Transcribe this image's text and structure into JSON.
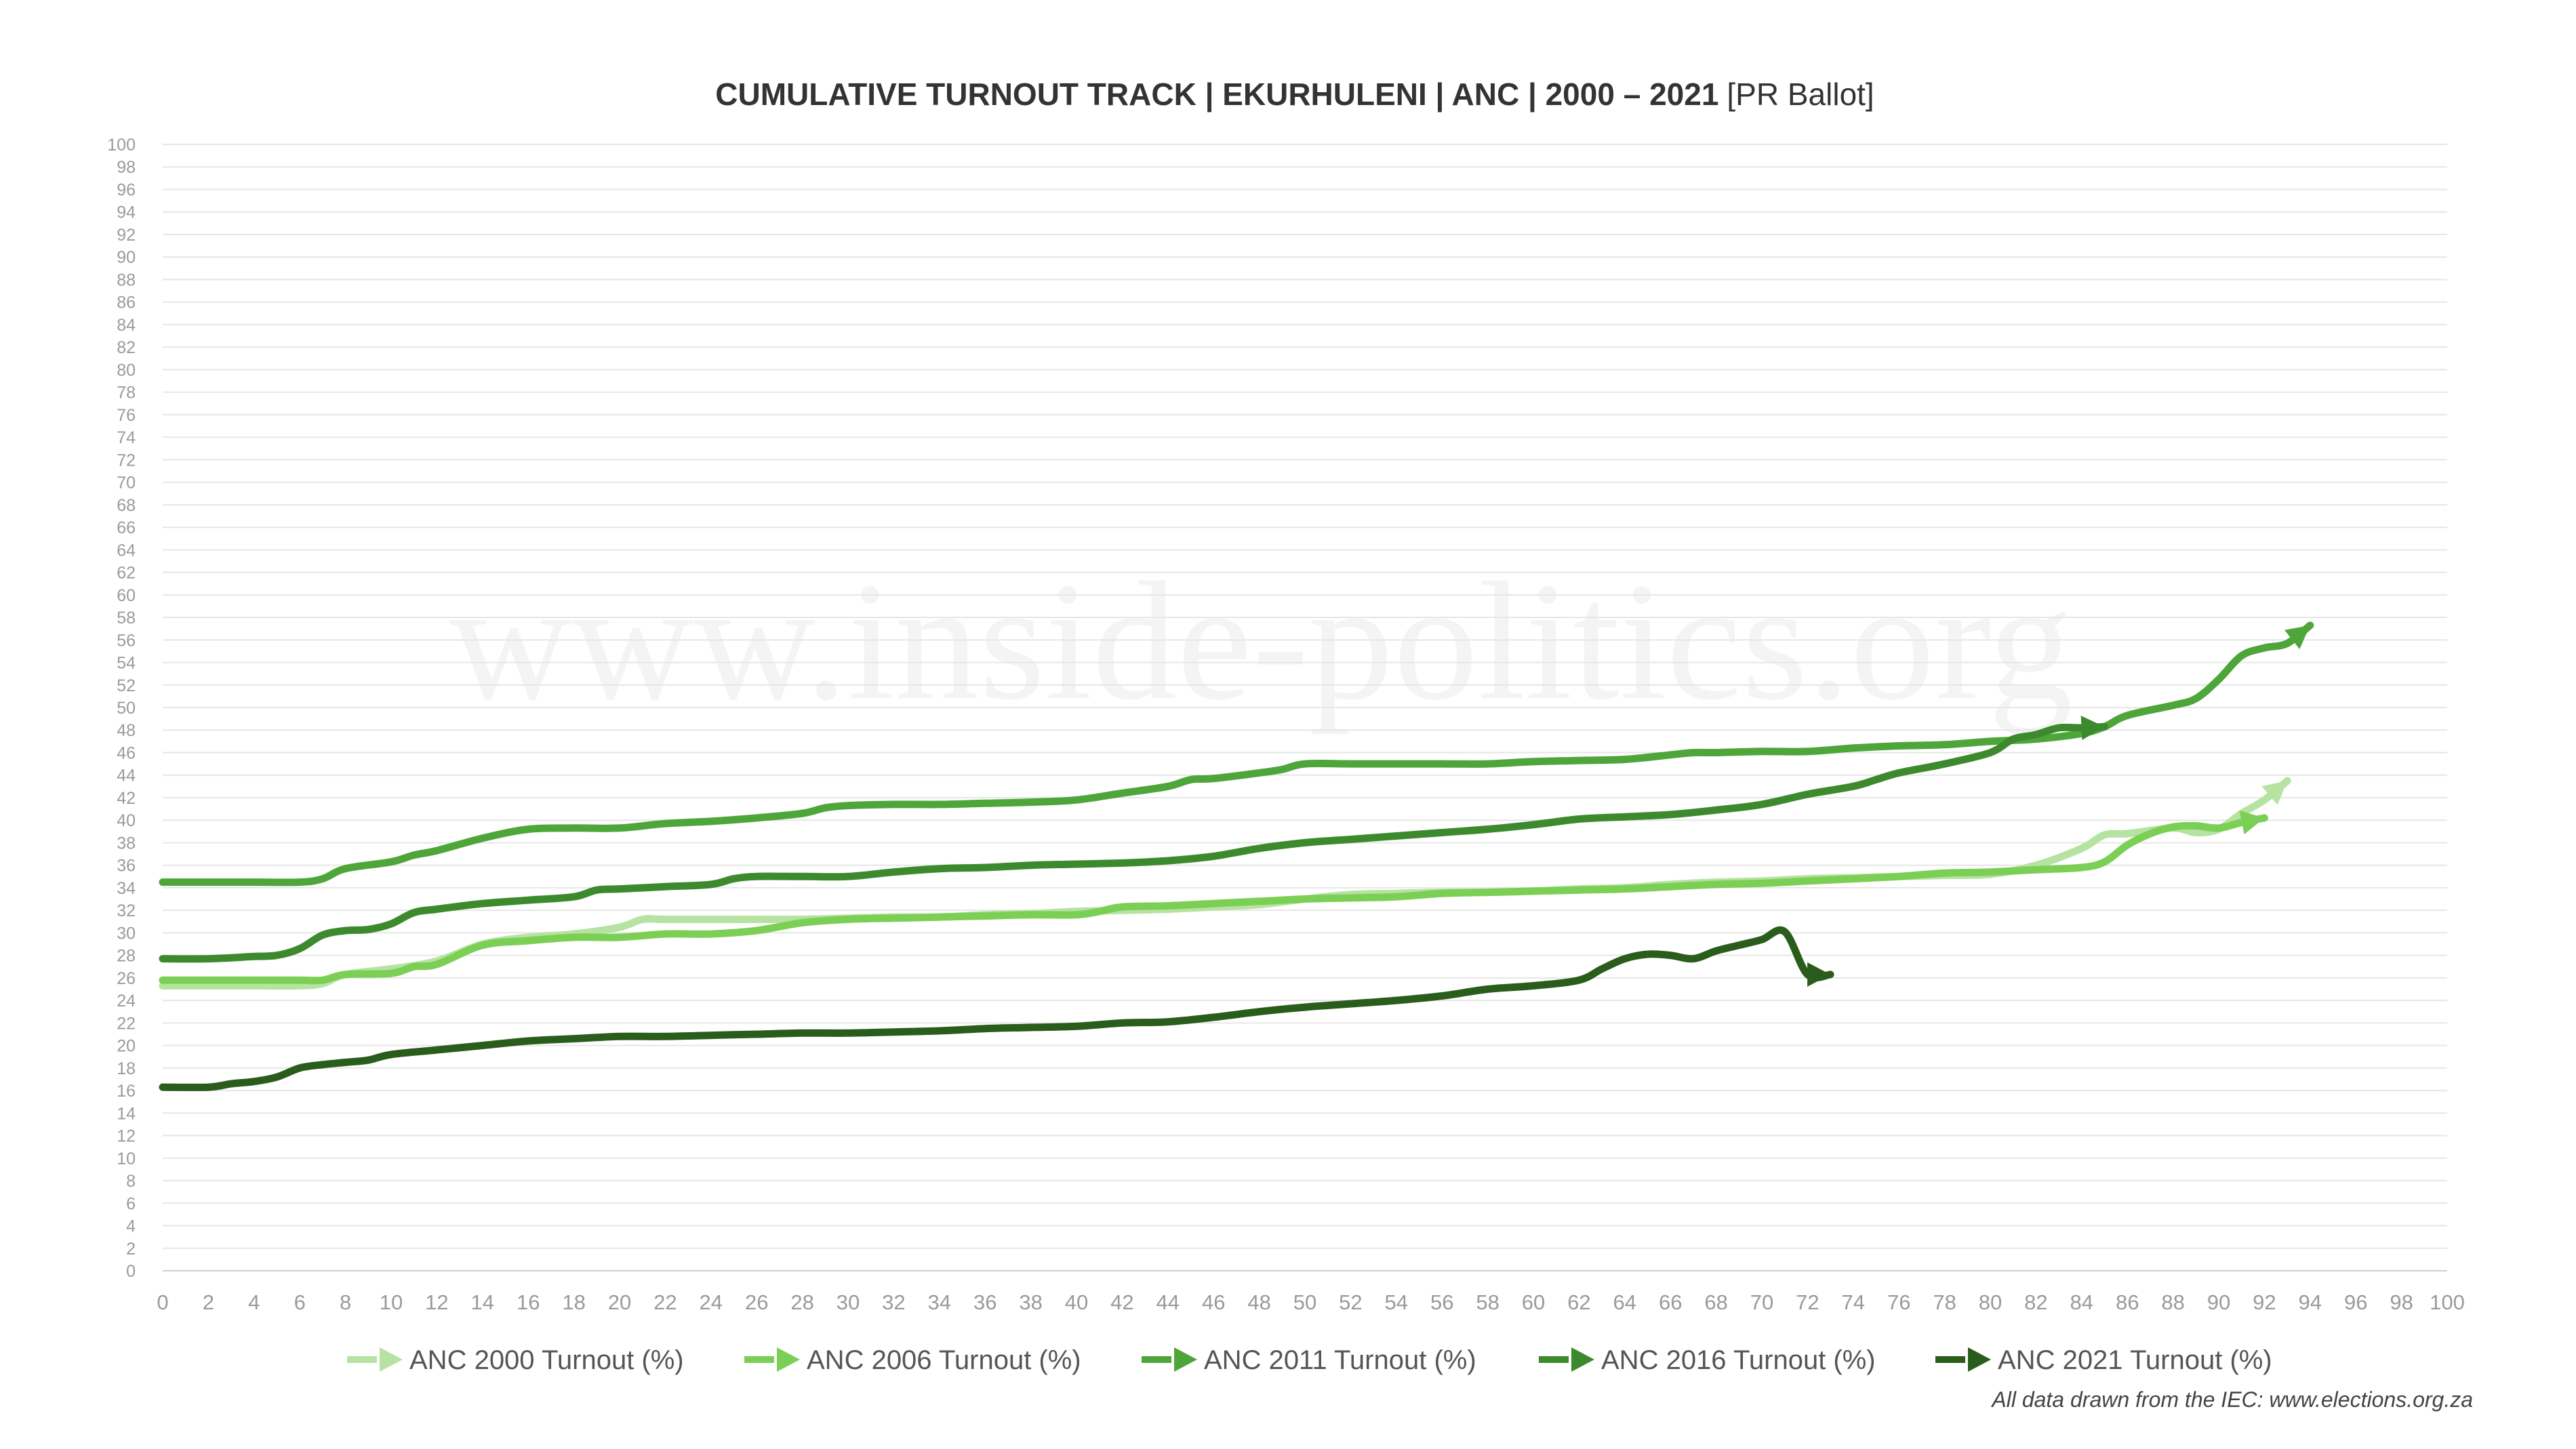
{
  "chart_data": {
    "type": "line",
    "title": "CUMULATIVE TURNOUT TRACK | EKURHULENI | ANC | 2000 – 2021",
    "subtitle": "[PR Ballot]",
    "xlabel": "",
    "ylabel": "",
    "xlim": [
      0,
      100
    ],
    "ylim": [
      0,
      100
    ],
    "x_ticks": [
      "0",
      "2",
      "4",
      "6",
      "8",
      "10",
      "12",
      "14",
      "16",
      "18",
      "20",
      "22",
      "24",
      "26",
      "28",
      "30",
      "32",
      "34",
      "36",
      "38",
      "40",
      "42",
      "44",
      "46",
      "48",
      "50",
      "52",
      "54",
      "56",
      "58",
      "60",
      "62",
      "64",
      "66",
      "68",
      "70",
      "72",
      "74",
      "76",
      "78",
      "80",
      "82",
      "84",
      "86",
      "88",
      "90",
      "92",
      "94",
      "96",
      "98",
      "100"
    ],
    "y_ticks": [
      "0",
      "2",
      "4",
      "6",
      "8",
      "10",
      "12",
      "14",
      "16",
      "18",
      "20",
      "22",
      "24",
      "26",
      "28",
      "30",
      "32",
      "34",
      "36",
      "38",
      "40",
      "42",
      "44",
      "46",
      "48",
      "50",
      "52",
      "54",
      "56",
      "58",
      "60",
      "62",
      "64",
      "66",
      "68",
      "70",
      "72",
      "74",
      "76",
      "78",
      "80",
      "82",
      "84",
      "86",
      "88",
      "90",
      "92",
      "94",
      "96",
      "98",
      "100"
    ],
    "grid": true,
    "legend_position": "bottom",
    "watermark": "www.inside-politics.org",
    "source_note": "All data drawn from the IEC: www.elections.org.za",
    "series": [
      {
        "name": "ANC 2000 Turnout (%)",
        "color": "#b6e3a1",
        "points": [
          [
            0,
            25.3
          ],
          [
            4,
            25.3
          ],
          [
            6,
            25.3
          ],
          [
            7,
            25.5
          ],
          [
            8,
            26.3
          ],
          [
            10,
            26.8
          ],
          [
            12,
            27.5
          ],
          [
            14,
            29
          ],
          [
            16,
            29.6
          ],
          [
            18,
            29.9
          ],
          [
            20,
            30.5
          ],
          [
            21,
            31.2
          ],
          [
            22,
            31.2
          ],
          [
            24,
            31.2
          ],
          [
            26,
            31.2
          ],
          [
            28,
            31.2
          ],
          [
            30,
            31.3
          ],
          [
            32,
            31.4
          ],
          [
            34,
            31.4
          ],
          [
            36,
            31.6
          ],
          [
            38,
            31.7
          ],
          [
            40,
            31.9
          ],
          [
            42,
            32
          ],
          [
            44,
            32.1
          ],
          [
            46,
            32.3
          ],
          [
            48,
            32.5
          ],
          [
            50,
            33
          ],
          [
            52,
            33.4
          ],
          [
            54,
            33.5
          ],
          [
            56,
            33.6
          ],
          [
            58,
            33.6
          ],
          [
            60,
            33.7
          ],
          [
            62,
            33.9
          ],
          [
            64,
            34
          ],
          [
            66,
            34.3
          ],
          [
            68,
            34.5
          ],
          [
            70,
            34.6
          ],
          [
            72,
            34.8
          ],
          [
            74,
            34.9
          ],
          [
            76,
            35
          ],
          [
            78,
            35.1
          ],
          [
            80,
            35.2
          ],
          [
            82,
            36
          ],
          [
            84,
            37.5
          ],
          [
            85,
            38.7
          ],
          [
            86,
            38.8
          ],
          [
            88,
            39.3
          ],
          [
            89,
            38.9
          ],
          [
            90,
            39.2
          ],
          [
            91,
            40.6
          ],
          [
            92,
            41.8
          ],
          [
            93,
            43.5
          ]
        ]
      },
      {
        "name": "ANC 2006 Turnout (%)",
        "color": "#7ccf55",
        "points": [
          [
            0,
            25.8
          ],
          [
            4,
            25.8
          ],
          [
            6,
            25.8
          ],
          [
            7,
            25.8
          ],
          [
            8,
            26.3
          ],
          [
            10,
            26.4
          ],
          [
            11,
            27
          ],
          [
            12,
            27.2
          ],
          [
            14,
            28.9
          ],
          [
            16,
            29.3
          ],
          [
            18,
            29.6
          ],
          [
            20,
            29.6
          ],
          [
            22,
            29.9
          ],
          [
            24,
            29.9
          ],
          [
            26,
            30.2
          ],
          [
            28,
            30.9
          ],
          [
            30,
            31.2
          ],
          [
            32,
            31.3
          ],
          [
            34,
            31.4
          ],
          [
            36,
            31.5
          ],
          [
            38,
            31.6
          ],
          [
            40,
            31.6
          ],
          [
            41,
            31.9
          ],
          [
            42,
            32.3
          ],
          [
            44,
            32.4
          ],
          [
            46,
            32.6
          ],
          [
            48,
            32.8
          ],
          [
            50,
            33
          ],
          [
            52,
            33.1
          ],
          [
            54,
            33.2
          ],
          [
            56,
            33.5
          ],
          [
            58,
            33.6
          ],
          [
            60,
            33.7
          ],
          [
            62,
            33.8
          ],
          [
            64,
            33.9
          ],
          [
            66,
            34.1
          ],
          [
            68,
            34.3
          ],
          [
            70,
            34.4
          ],
          [
            72,
            34.6
          ],
          [
            74,
            34.8
          ],
          [
            76,
            35
          ],
          [
            78,
            35.3
          ],
          [
            80,
            35.4
          ],
          [
            82,
            35.6
          ],
          [
            84,
            35.8
          ],
          [
            85,
            36.3
          ],
          [
            86,
            37.8
          ],
          [
            87,
            38.8
          ],
          [
            88,
            39.4
          ],
          [
            89,
            39.5
          ],
          [
            90,
            39.3
          ],
          [
            91,
            39.8
          ],
          [
            92,
            40.2
          ]
        ]
      },
      {
        "name": "ANC 2011 Turnout (%)",
        "color": "#4ea63a",
        "points": [
          [
            0,
            34.5
          ],
          [
            4,
            34.5
          ],
          [
            6,
            34.5
          ],
          [
            7,
            34.8
          ],
          [
            8,
            35.7
          ],
          [
            10,
            36.3
          ],
          [
            11,
            36.9
          ],
          [
            12,
            37.3
          ],
          [
            14,
            38.4
          ],
          [
            16,
            39.2
          ],
          [
            18,
            39.3
          ],
          [
            20,
            39.3
          ],
          [
            22,
            39.7
          ],
          [
            24,
            39.9
          ],
          [
            26,
            40.2
          ],
          [
            28,
            40.6
          ],
          [
            29,
            41.1
          ],
          [
            30,
            41.3
          ],
          [
            32,
            41.4
          ],
          [
            34,
            41.4
          ],
          [
            36,
            41.5
          ],
          [
            38,
            41.6
          ],
          [
            40,
            41.8
          ],
          [
            42,
            42.4
          ],
          [
            44,
            43
          ],
          [
            45,
            43.6
          ],
          [
            46,
            43.7
          ],
          [
            48,
            44.2
          ],
          [
            49,
            44.5
          ],
          [
            50,
            45
          ],
          [
            52,
            45
          ],
          [
            54,
            45
          ],
          [
            56,
            45
          ],
          [
            58,
            45
          ],
          [
            60,
            45.2
          ],
          [
            62,
            45.3
          ],
          [
            64,
            45.4
          ],
          [
            66,
            45.8
          ],
          [
            67,
            46
          ],
          [
            68,
            46
          ],
          [
            70,
            46.1
          ],
          [
            72,
            46.1
          ],
          [
            74,
            46.4
          ],
          [
            76,
            46.6
          ],
          [
            78,
            46.7
          ],
          [
            80,
            47
          ],
          [
            82,
            47.2
          ],
          [
            84,
            47.7
          ],
          [
            85,
            48.3
          ],
          [
            86,
            49.3
          ],
          [
            88,
            50.2
          ],
          [
            89,
            50.8
          ],
          [
            90,
            52.5
          ],
          [
            91,
            54.6
          ],
          [
            92,
            55.3
          ],
          [
            93,
            55.7
          ],
          [
            94,
            57.3
          ]
        ]
      },
      {
        "name": "ANC 2016 Turnout (%)",
        "color": "#3d8a2e",
        "points": [
          [
            0,
            27.7
          ],
          [
            2,
            27.7
          ],
          [
            4,
            27.9
          ],
          [
            5,
            28
          ],
          [
            6,
            28.6
          ],
          [
            7,
            29.8
          ],
          [
            8,
            30.2
          ],
          [
            9,
            30.3
          ],
          [
            10,
            30.8
          ],
          [
            11,
            31.8
          ],
          [
            12,
            32.1
          ],
          [
            14,
            32.6
          ],
          [
            16,
            32.9
          ],
          [
            18,
            33.2
          ],
          [
            19,
            33.8
          ],
          [
            20,
            33.9
          ],
          [
            22,
            34.1
          ],
          [
            24,
            34.3
          ],
          [
            25,
            34.8
          ],
          [
            26,
            35
          ],
          [
            28,
            35
          ],
          [
            30,
            35
          ],
          [
            32,
            35.4
          ],
          [
            34,
            35.7
          ],
          [
            36,
            35.8
          ],
          [
            38,
            36
          ],
          [
            40,
            36.1
          ],
          [
            42,
            36.2
          ],
          [
            44,
            36.4
          ],
          [
            46,
            36.8
          ],
          [
            48,
            37.5
          ],
          [
            50,
            38
          ],
          [
            52,
            38.3
          ],
          [
            54,
            38.6
          ],
          [
            56,
            38.9
          ],
          [
            58,
            39.2
          ],
          [
            60,
            39.6
          ],
          [
            62,
            40.1
          ],
          [
            64,
            40.3
          ],
          [
            66,
            40.5
          ],
          [
            68,
            40.9
          ],
          [
            70,
            41.4
          ],
          [
            72,
            42.3
          ],
          [
            74,
            43
          ],
          [
            75,
            43.6
          ],
          [
            76,
            44.2
          ],
          [
            78,
            45
          ],
          [
            80,
            46
          ],
          [
            81,
            47.2
          ],
          [
            82,
            47.6
          ],
          [
            83,
            48.2
          ],
          [
            84,
            48.2
          ],
          [
            85,
            48.3
          ]
        ]
      },
      {
        "name": "ANC 2021 Turnout (%)",
        "color": "#2a5c1c",
        "points": [
          [
            0,
            16.3
          ],
          [
            2,
            16.3
          ],
          [
            3,
            16.6
          ],
          [
            4,
            16.8
          ],
          [
            5,
            17.2
          ],
          [
            6,
            18
          ],
          [
            7,
            18.3
          ],
          [
            8,
            18.5
          ],
          [
            9,
            18.7
          ],
          [
            10,
            19.2
          ],
          [
            12,
            19.6
          ],
          [
            14,
            20
          ],
          [
            16,
            20.4
          ],
          [
            18,
            20.6
          ],
          [
            20,
            20.8
          ],
          [
            22,
            20.8
          ],
          [
            24,
            20.9
          ],
          [
            26,
            21
          ],
          [
            28,
            21.1
          ],
          [
            30,
            21.1
          ],
          [
            32,
            21.2
          ],
          [
            34,
            21.3
          ],
          [
            36,
            21.5
          ],
          [
            38,
            21.6
          ],
          [
            40,
            21.7
          ],
          [
            42,
            22
          ],
          [
            44,
            22.1
          ],
          [
            46,
            22.5
          ],
          [
            48,
            23
          ],
          [
            50,
            23.4
          ],
          [
            52,
            23.7
          ],
          [
            54,
            24
          ],
          [
            56,
            24.4
          ],
          [
            58,
            25
          ],
          [
            60,
            25.3
          ],
          [
            62,
            25.8
          ],
          [
            63,
            26.8
          ],
          [
            64,
            27.7
          ],
          [
            65,
            28.1
          ],
          [
            66,
            28
          ],
          [
            67,
            27.7
          ],
          [
            68,
            28.4
          ],
          [
            69,
            28.9
          ],
          [
            70,
            29.4
          ],
          [
            71,
            30.1
          ],
          [
            72,
            26.3
          ],
          [
            73,
            26.3
          ]
        ]
      }
    ]
  }
}
